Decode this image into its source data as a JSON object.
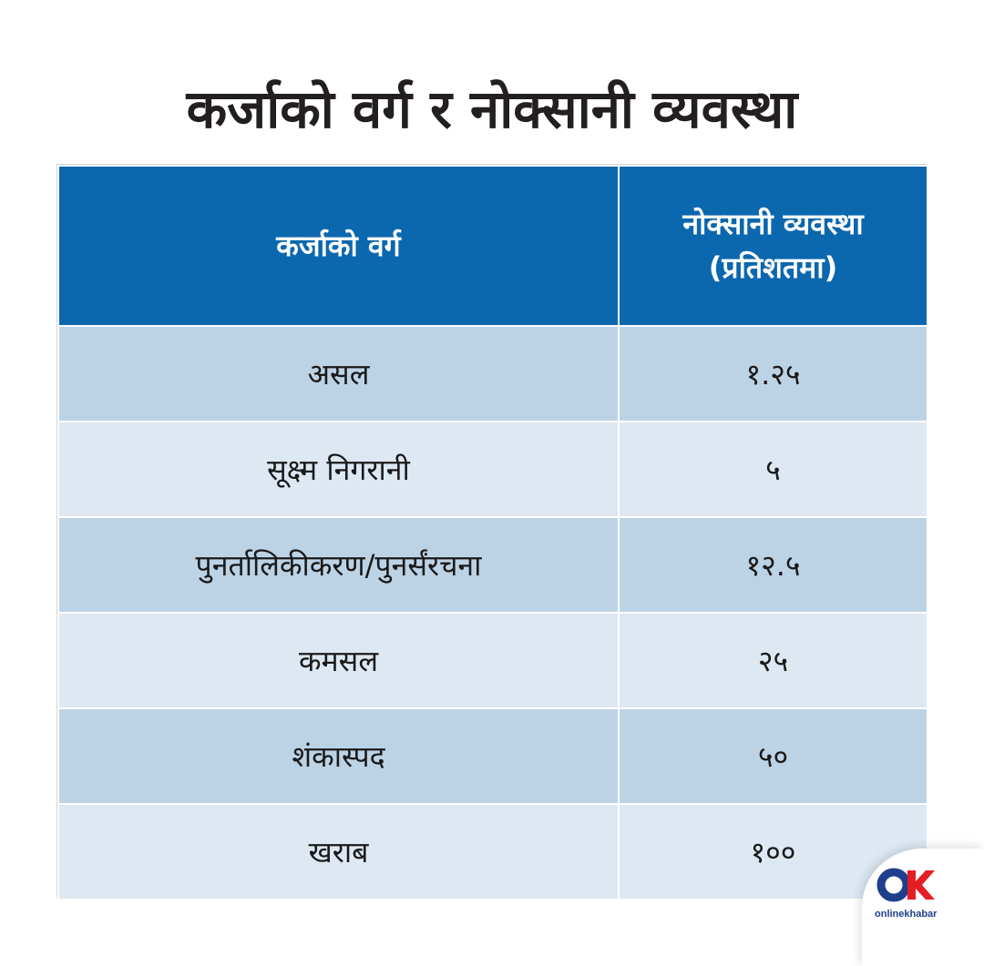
{
  "title": "कर्जाको वर्ग र नोक्सानी व्यवस्था",
  "table": {
    "headers": {
      "col1": "कर्जाको वर्ग",
      "col2_line1": "नोक्सानी व्यवस्था",
      "col2_line2": "(प्रतिशतमा)"
    },
    "rows": [
      {
        "category": "असल",
        "provision": "१.२५"
      },
      {
        "category": "सूक्ष्म निगरानी",
        "provision": "५"
      },
      {
        "category": "पुनर्तालिकीकरण/पुनर्संरचना",
        "provision": "१२.५"
      },
      {
        "category": "कमसल",
        "provision": "२५"
      },
      {
        "category": "शंकास्पद",
        "provision": "५०"
      },
      {
        "category": "खराब",
        "provision": "१००"
      }
    ]
  },
  "logo": {
    "text": "onlinekhabar",
    "icon": "onlinekhabar-ok-logo-icon",
    "colors": {
      "o": "#1f3f8c",
      "k": "#e31e24"
    }
  },
  "colors": {
    "header_bg": "#0b67ae",
    "row_dark": "#bcd3e6",
    "row_light": "#dde8f3",
    "title": "#231f20"
  }
}
